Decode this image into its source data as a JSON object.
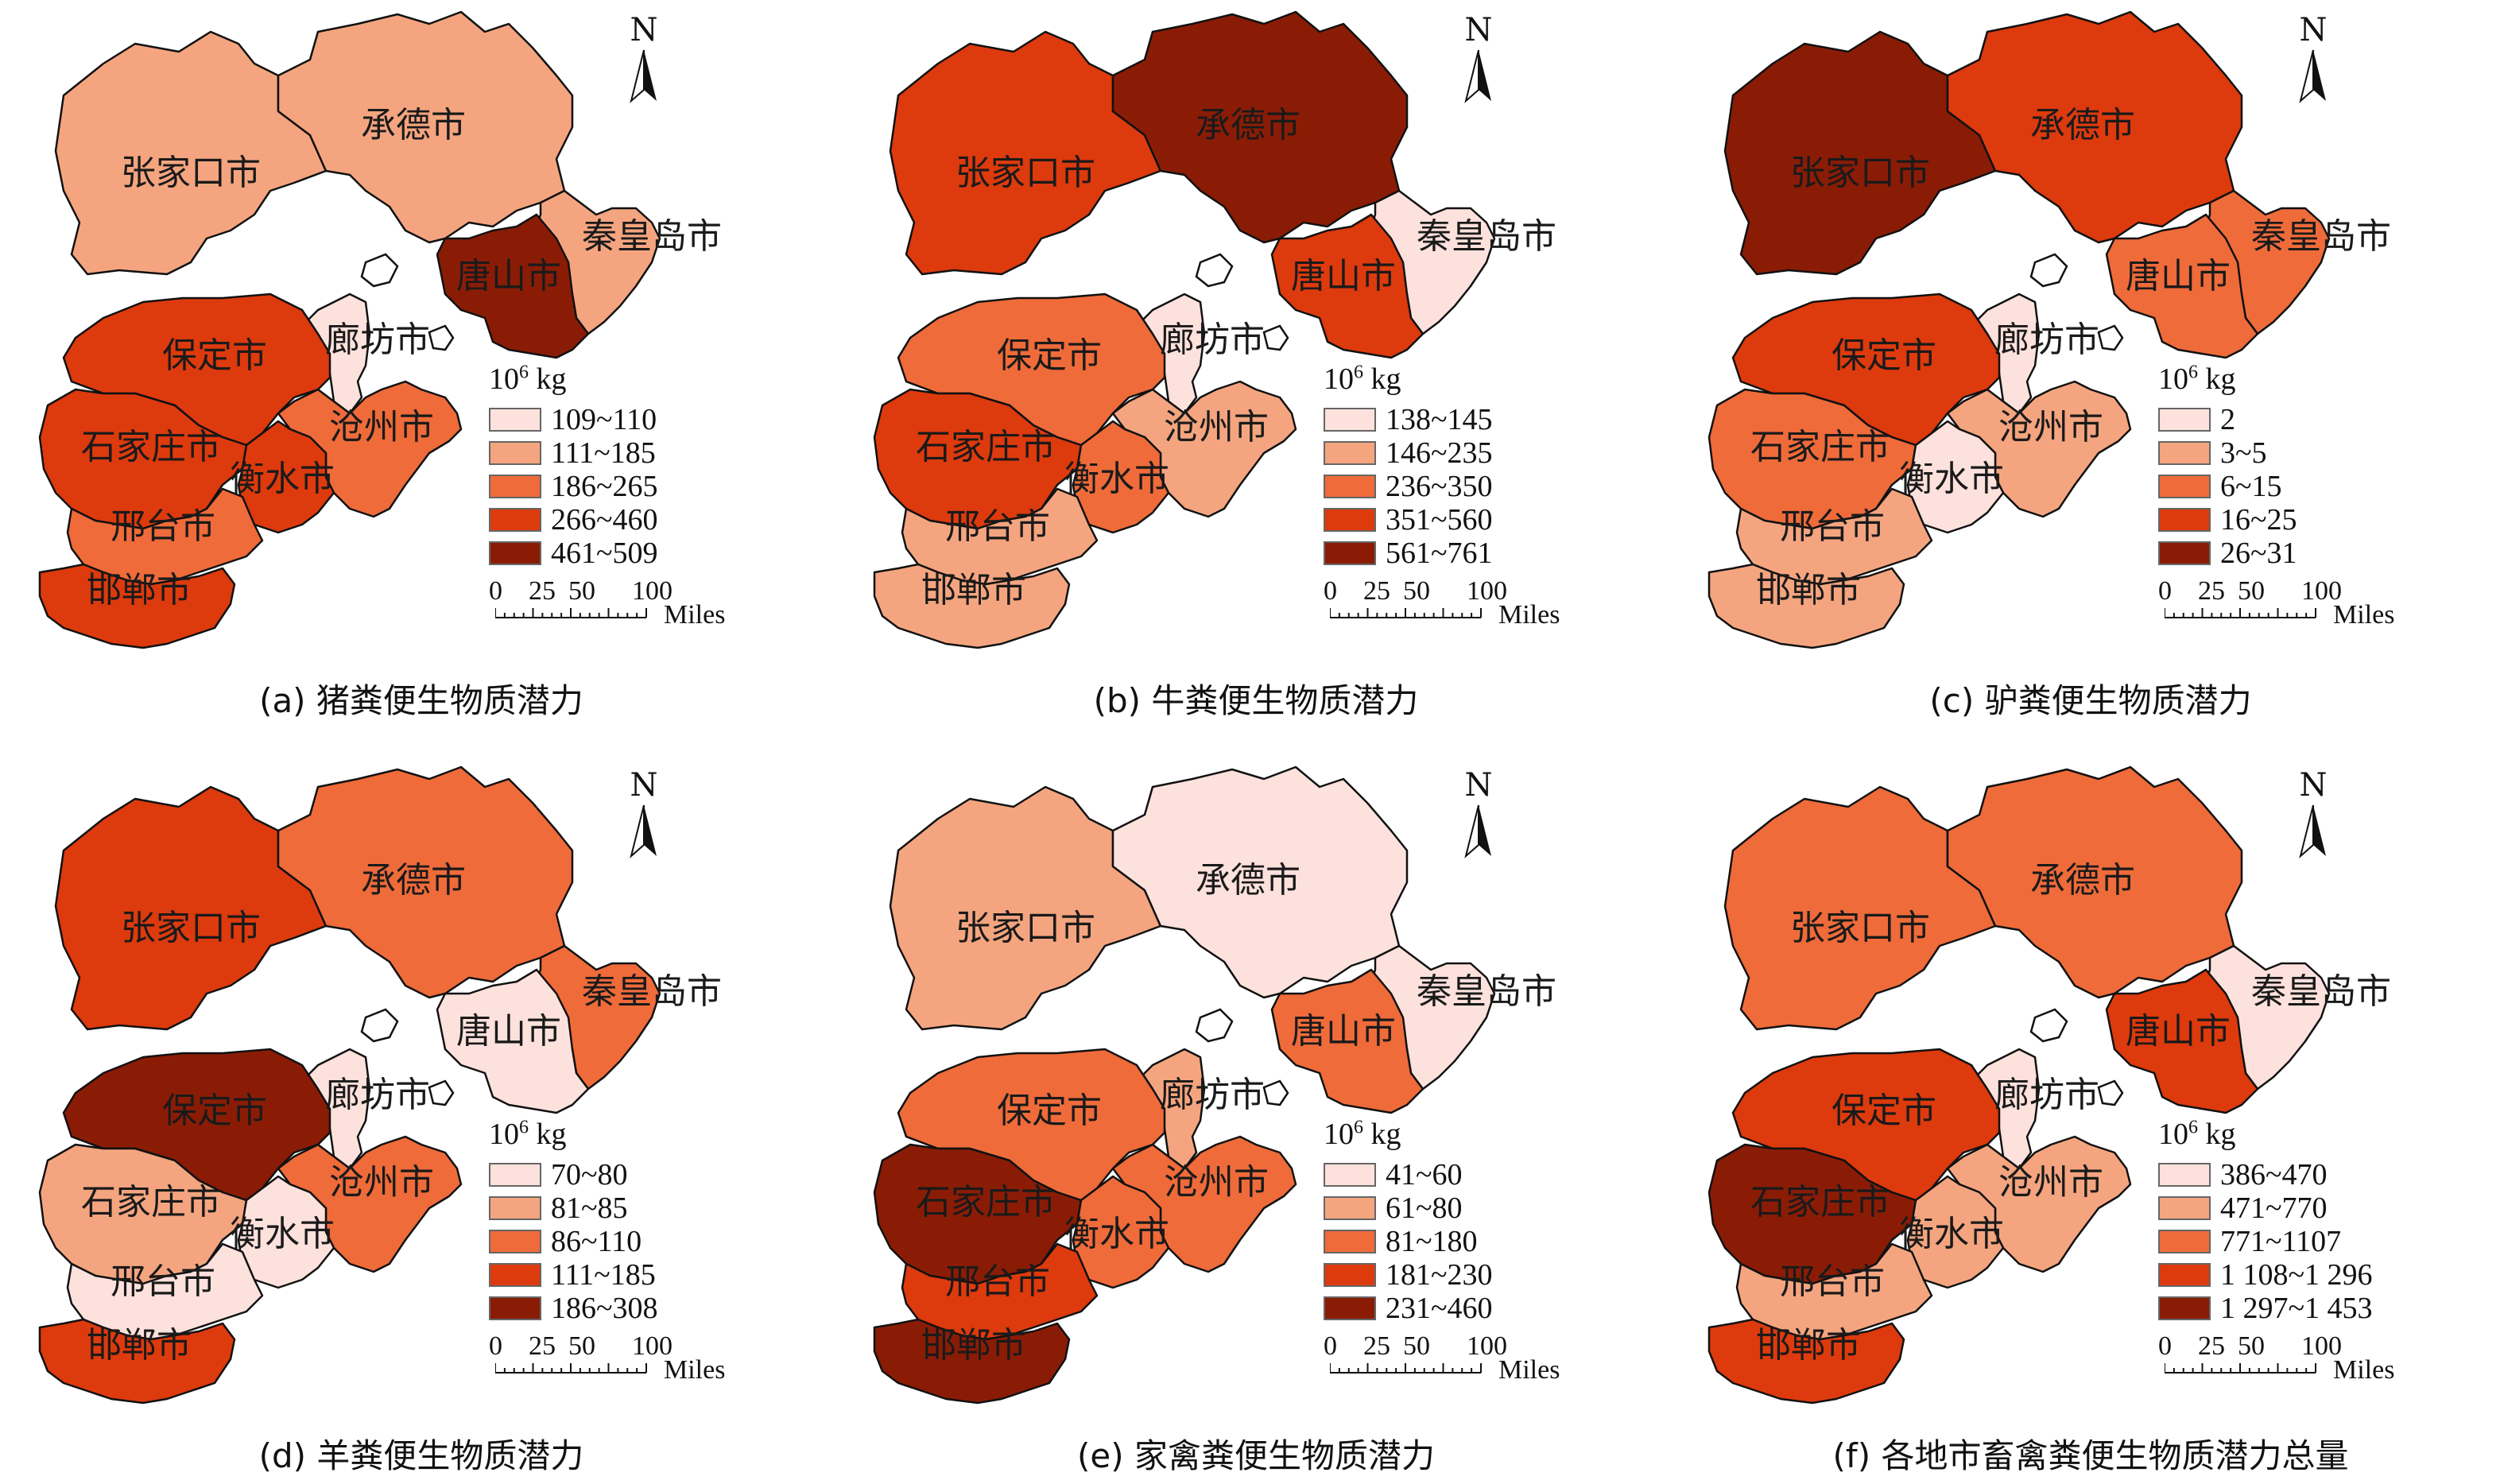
{
  "palette": [
    "#fde1dc",
    "#f4a57f",
    "#ef6b3a",
    "#dd3a0d",
    "#8a1c06"
  ],
  "north_label": "N",
  "unit": {
    "base": "10",
    "exp": "6",
    "rest": "kg"
  },
  "scale": {
    "labels": [
      "0",
      "25",
      "50",
      "100"
    ],
    "unit": "Miles"
  },
  "regions": [
    "张家口市",
    "承德市",
    "秦皇岛市",
    "唐山市",
    "廊坊市",
    "保定市",
    "石家庄市",
    "沧州市",
    "衡水市",
    "邢台市",
    "邯郸市"
  ],
  "panels": [
    {
      "caption": "(a) 猪粪便生物质潜力",
      "legend": [
        "109~110",
        "111~185",
        "186~265",
        "266~460",
        "461~509"
      ],
      "classes": [
        1,
        1,
        1,
        4,
        0,
        3,
        3,
        2,
        3,
        2,
        3
      ]
    },
    {
      "caption": "(b) 牛粪便生物质潜力",
      "legend": [
        "138~145",
        "146~235",
        "236~350",
        "351~560",
        "561~761"
      ],
      "classes": [
        3,
        4,
        0,
        3,
        0,
        2,
        3,
        1,
        2,
        1,
        1
      ]
    },
    {
      "caption": "(c) 驴粪便生物质潜力",
      "legend": [
        "2",
        "3~5",
        "6~15",
        "16~25",
        "26~31"
      ],
      "classes": [
        4,
        3,
        2,
        2,
        0,
        3,
        2,
        1,
        0,
        1,
        1
      ]
    },
    {
      "caption": "(d) 羊粪便生物质潜力",
      "legend": [
        "70~80",
        "81~85",
        "86~110",
        "111~185",
        "186~308"
      ],
      "classes": [
        3,
        2,
        2,
        0,
        0,
        4,
        1,
        2,
        0,
        0,
        3
      ]
    },
    {
      "caption": "(e) 家禽粪便生物质潜力",
      "legend": [
        "41~60",
        "61~80",
        "81~180",
        "181~230",
        "231~460"
      ],
      "classes": [
        1,
        0,
        0,
        2,
        1,
        2,
        4,
        2,
        2,
        3,
        4
      ]
    },
    {
      "caption": "(f) 各地市畜禽粪便生物质潜力总量",
      "legend": [
        "386~470",
        "471~770",
        "771~1107",
        "1 108~1 296",
        "1 297~1 453"
      ],
      "classes": [
        2,
        2,
        0,
        3,
        0,
        3,
        4,
        1,
        1,
        1,
        3
      ]
    }
  ]
}
